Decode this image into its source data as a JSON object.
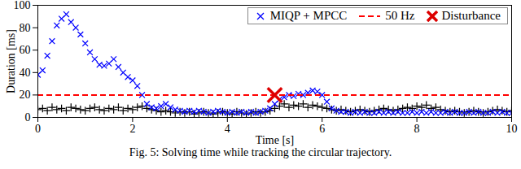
{
  "chart_data": {
    "type": "scatter",
    "caption": "Fig. 5: Solving time while tracking the circular trajectory.",
    "x_label": "Time [s]",
    "y_label": "Duration [ms]",
    "xlim": [
      0,
      10
    ],
    "xticks": [
      0,
      2,
      4,
      6,
      8,
      10
    ],
    "ylim": [
      0,
      100
    ],
    "yticks": [
      0,
      20,
      40,
      60,
      80,
      100
    ],
    "grid": false,
    "legend": "upper right",
    "x": [
      0,
      0.1,
      0.2,
      0.3,
      0.4,
      0.5,
      0.6,
      0.7,
      0.8,
      0.9,
      1,
      1.1,
      1.2,
      1.3,
      1.4,
      1.5,
      1.6,
      1.7,
      1.8,
      1.9,
      2,
      2.1,
      2.2,
      2.3,
      2.4,
      2.5,
      2.6,
      2.7,
      2.8,
      2.9,
      3,
      3.1,
      3.2,
      3.3,
      3.4,
      3.5,
      3.6,
      3.7,
      3.8,
      3.9,
      4,
      4.1,
      4.2,
      4.3,
      4.4,
      4.5,
      4.6,
      4.7,
      4.8,
      4.9,
      5,
      5.1,
      5.2,
      5.3,
      5.4,
      5.5,
      5.6,
      5.7,
      5.8,
      5.9,
      6,
      6.1,
      6.2,
      6.3,
      6.4,
      6.5,
      6.6,
      6.7,
      6.8,
      6.9,
      7,
      7.1,
      7.2,
      7.3,
      7.4,
      7.5,
      7.6,
      7.7,
      7.8,
      7.9,
      8,
      8.1,
      8.2,
      8.3,
      8.4,
      8.5,
      8.6,
      8.7,
      8.8,
      8.9,
      9,
      9.1,
      9.2,
      9.3,
      9.4,
      9.5,
      9.6,
      9.7,
      9.8,
      9.9,
      10
    ],
    "series": [
      {
        "color": "#000000",
        "marker": "plus",
        "values": [
          7,
          8,
          6,
          9,
          7,
          8,
          6,
          9,
          8,
          7,
          6,
          8,
          9,
          7,
          6,
          8,
          7,
          9,
          6,
          8,
          7,
          9,
          10,
          8,
          7,
          6,
          5,
          6,
          5,
          4,
          5,
          4,
          5,
          3,
          4,
          5,
          4,
          3,
          4,
          5,
          4,
          3,
          5,
          4,
          3,
          4,
          5,
          4,
          5,
          6,
          8,
          10,
          12,
          9,
          11,
          10,
          12,
          9,
          11,
          10,
          9,
          8,
          7,
          6,
          7,
          6,
          5,
          6,
          7,
          6,
          5,
          6,
          7,
          8,
          7,
          6,
          7,
          8,
          9,
          8,
          10,
          9,
          11,
          8,
          9,
          7,
          6,
          5,
          6,
          5,
          4,
          5,
          6,
          5,
          4,
          5,
          6,
          7,
          6,
          5,
          6
        ]
      },
      {
        "name": "MIQP + MPCC",
        "color": "#0000ff",
        "marker": "x",
        "values": [
          38,
          42,
          55,
          68,
          82,
          88,
          92,
          85,
          80,
          74,
          66,
          58,
          52,
          47,
          46,
          48,
          52,
          45,
          40,
          36,
          33,
          28,
          20,
          12,
          9,
          8,
          10,
          12,
          9,
          7,
          6,
          5,
          6,
          5,
          6,
          5,
          4,
          5,
          6,
          5,
          4,
          5,
          4,
          5,
          4,
          5,
          4,
          5,
          6,
          8,
          12,
          16,
          18,
          20,
          19,
          21,
          20,
          22,
          24,
          23,
          20,
          14,
          8,
          6,
          5,
          5,
          4,
          5,
          4,
          5,
          4,
          4,
          5,
          4,
          5,
          4,
          5,
          4,
          4,
          5,
          4,
          5,
          4,
          5,
          4,
          4,
          5,
          4,
          5,
          4,
          4,
          5,
          4,
          5,
          4,
          4,
          5,
          4,
          5,
          4,
          4
        ]
      },
      {
        "name": "50 Hz",
        "type": "hline",
        "color": "#ff0000",
        "line_style": "dashed",
        "y": 20
      },
      {
        "name": "Disturbance",
        "type": "scatter",
        "color": "#dd0000",
        "marker": "x",
        "x": [
          5
        ],
        "values": [
          20
        ]
      }
    ]
  }
}
